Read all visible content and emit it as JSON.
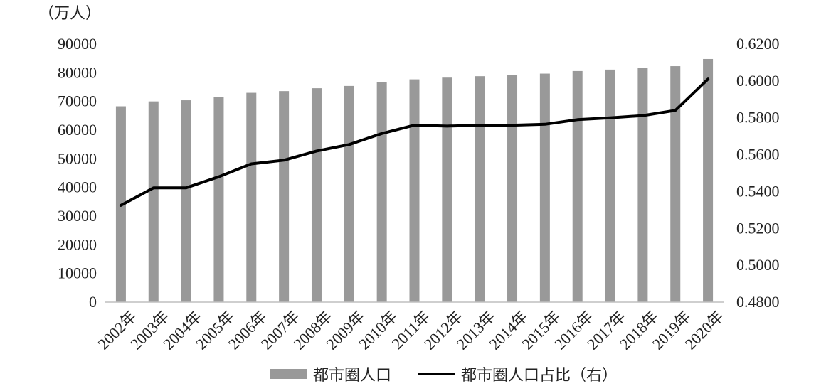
{
  "chart_data": {
    "type": "bar+line",
    "unit_label": "（万人）",
    "categories": [
      "2002年",
      "2003年",
      "2004年",
      "2005年",
      "2006年",
      "2007年",
      "2008年",
      "2009年",
      "2010年",
      "2011年",
      "2012年",
      "2013年",
      "2014年",
      "2015年",
      "2016年",
      "2017年",
      "2018年",
      "2019年",
      "2020年"
    ],
    "series": [
      {
        "name": "都市圈人口",
        "type": "bar",
        "axis": "left",
        "color": "#999999",
        "values": [
          68300,
          70000,
          70400,
          71600,
          73000,
          73600,
          74600,
          75400,
          76700,
          77700,
          78300,
          78800,
          79300,
          79700,
          80600,
          81100,
          81700,
          82300,
          84800
        ]
      },
      {
        "name": "都市圈人口占比（右）",
        "type": "line",
        "axis": "right",
        "color": "#000000",
        "values": [
          0.5325,
          0.542,
          0.542,
          0.548,
          0.555,
          0.557,
          0.562,
          0.5655,
          0.5715,
          0.576,
          0.5755,
          0.576,
          0.576,
          0.5765,
          0.579,
          0.58,
          0.5812,
          0.584,
          0.601
        ]
      }
    ],
    "y_left": {
      "min": 0,
      "max": 90000,
      "step": 10000,
      "ticks": [
        "0",
        "10000",
        "20000",
        "30000",
        "40000",
        "50000",
        "60000",
        "70000",
        "80000",
        "90000"
      ]
    },
    "y_right": {
      "min": 0.48,
      "max": 0.62,
      "step": 0.02,
      "ticks": [
        "0.4800",
        "0.5000",
        "0.5200",
        "0.5400",
        "0.5600",
        "0.5800",
        "0.6000",
        "0.6200"
      ]
    },
    "grid": false,
    "legend_position": "bottom-center"
  }
}
